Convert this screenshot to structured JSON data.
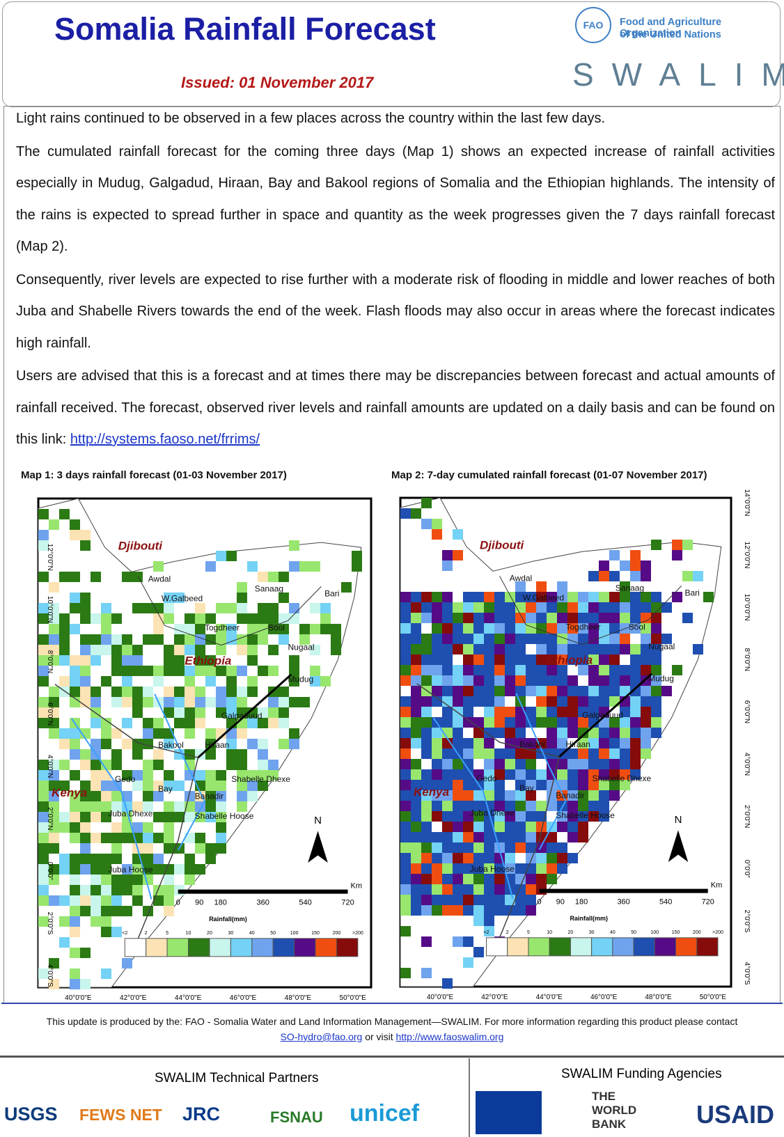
{
  "header": {
    "title": "Somalia Rainfall Forecast",
    "issued": "Issued:  01 November 2017",
    "org_name": [
      "Food and Agriculture Organization",
      "of the United Nations"
    ],
    "fao_logo": "FAO",
    "swalim": "SWALIM"
  },
  "paragraphs": [
    "Light rains continued to be observed in a few places across the country within the last few days.",
    "The cumulated rainfall forecast for the coming three days (Map 1) shows an expected increase of rainfall activities especially in Mudug, Galgadud, Hiraan, Bay and Bakool regions of Somalia and the Ethiopian highlands. The intensity of the rains is expected to spread further in space and quantity as the week progresses given the 7 days rainfall forecast (Map 2).",
    "Consequently, river levels are expected to rise further with a moderate risk of flooding in middle and lower reaches of both Juba and Shabelle Rivers towards the end of the week. Flash floods may also occur in areas where the forecast indicates high rainfall."
  ],
  "last_paragraph": {
    "text": "Users are  advised that this is a forecast  and at times there may be discrepancies between forecast and actual amounts of rainfall received. The forecast, observed river levels and rainfall amounts are updated on a daily basis and can be found on this link:",
    "link": "http://systems.faoso.net/frrims/"
  },
  "map_labels": [
    "Djibouti",
    "Ethiopia",
    "Kenya",
    "Awdal",
    "W.Galbeed",
    "Sanaag",
    "Bari",
    "Togdheer",
    "Sool",
    "Nugaal",
    "Mudug",
    "Galgaduud",
    "Bakool",
    "Hiraan",
    "Gedo",
    "Bay",
    "Shabelle Dhexe",
    "Banadir",
    "Juba Dhexe",
    "Shabelle Hoose",
    "Juba Hoose"
  ],
  "maps": [
    {
      "caption": "Map 1: 3 days rainfall forecast  (01-03 November 2017)",
      "lat_ticks": [
        "12°0'0\"N",
        "10°0'0\"N",
        "8°0'0\"N",
        "6°0'0\"N",
        "4°0'0\"N",
        "2°0'0\"N",
        "0°0'0\"",
        "2°0'0\"S",
        "4°0'0\"S"
      ],
      "lon_ticks": [
        "40°0'0\"E",
        "42°0'0\"E",
        "44°0'0\"E",
        "46°0'0\"E",
        "48°0'0\"E",
        "50°0'0\"E"
      ]
    },
    {
      "caption": "Map 2: 7-day cumulated rainfall forecast  (01-07 November 2017)",
      "lat_ticks": [
        "14°0'0\"N",
        "12°0'0\"N",
        "10°0'0\"N",
        "8°0'0\"N",
        "6°0'0\"N",
        "4°0'0\"N",
        "2°0'0\"N",
        "0°0'0\"",
        "2°0'0\"S",
        "4°0'0\"S"
      ],
      "lon_ticks": [
        "40°0'0\"E",
        "42°0'0\"E",
        "44°0'0\"E",
        "46°0'0\"E",
        "48°0'0\"E",
        "50°0'0\"E"
      ]
    }
  ],
  "north": "N",
  "scale_ticks": [
    0,
    90,
    180,
    360,
    540,
    720
  ],
  "scale_unit": "Km",
  "legend_title": "Rainfall(mm)",
  "legend_labels": [
    "<2",
    "2",
    "5",
    "10",
    "20",
    "30",
    "40",
    "50",
    "100",
    "150",
    "200",
    ">200"
  ],
  "legend_colors": [
    "#ffffff",
    "#fbe3b3",
    "#98e66e",
    "#2b7a14",
    "#c8f5ec",
    "#73d2f5",
    "#6fa3ee",
    "#1f4fb0",
    "#560b86",
    "#f04e10",
    "#860c0c"
  ],
  "footer": {
    "text": "This update is produced by the: FAO - Somalia Water and Land Information Management—SWALIM. For more information regarding this product please contact",
    "email": "SO-hydro@fao.org",
    "middle": "or visit",
    "url": "http://www.faoswalim.org"
  },
  "partners": {
    "title": "SWALIM Technical Partners",
    "logos": [
      "USGS",
      "FEWS NET",
      "JRC",
      "FSNAU",
      "unicef"
    ]
  },
  "funding": {
    "title": "SWALIM Funding Agencies",
    "logos": [
      "THE WORLD BANK",
      "USAID"
    ]
  }
}
